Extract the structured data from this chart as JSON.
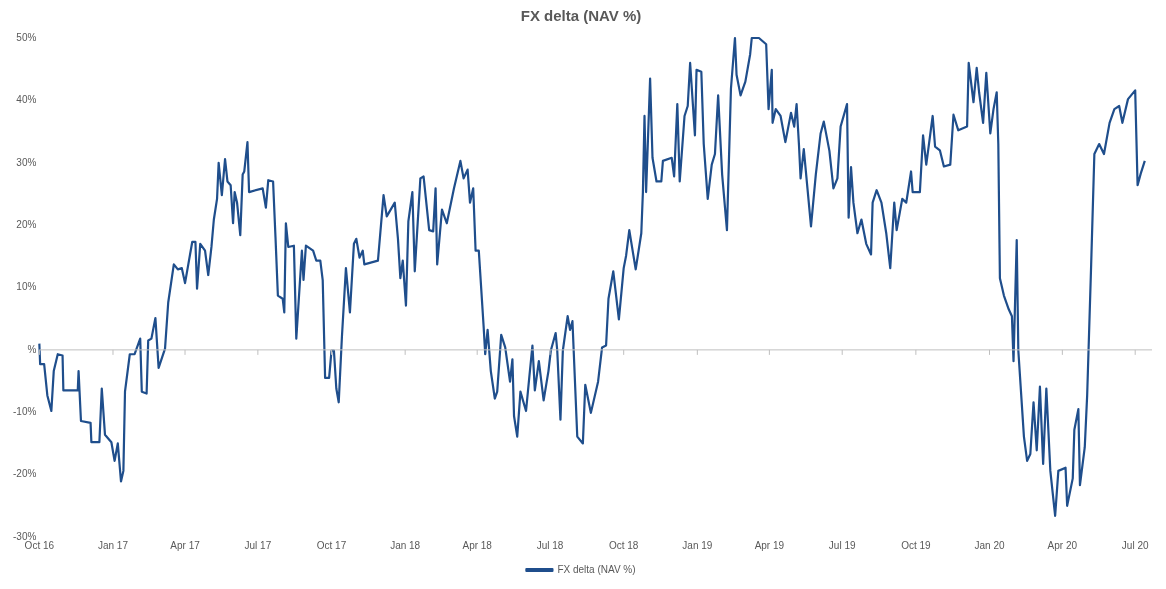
{
  "chart_data": {
    "type": "line",
    "title": "FX delta (NAV %)",
    "x": [
      "2016-10-01",
      "2016-10-02",
      "2016-10-07",
      "2016-10-11",
      "2016-10-16",
      "2016-10-19",
      "2016-10-24",
      "2016-10-30",
      "2016-10-31",
      "2016-11-18",
      "2016-11-19",
      "2016-11-22",
      "2016-12-04",
      "2016-12-05",
      "2016-12-15",
      "2016-12-18",
      "2016-12-22",
      "2016-12-30",
      "2017-01-03",
      "2017-01-07",
      "2017-01-11",
      "2017-01-14",
      "2017-01-16",
      "2017-01-22",
      "2017-01-28",
      "2017-02-04",
      "2017-02-06",
      "2017-02-12",
      "2017-02-14",
      "2017-02-18",
      "2017-02-23",
      "2017-02-27",
      "2017-03-07",
      "2017-03-11",
      "2017-03-18",
      "2017-03-23",
      "2017-03-28",
      "2017-04-01",
      "2017-04-10",
      "2017-04-14",
      "2017-04-16",
      "2017-04-20",
      "2017-04-26",
      "2017-04-30",
      "2017-05-04",
      "2017-05-07",
      "2017-05-11",
      "2017-05-13",
      "2017-05-17",
      "2017-05-21",
      "2017-05-24",
      "2017-05-28",
      "2017-05-31",
      "2017-06-02",
      "2017-06-05",
      "2017-06-09",
      "2017-06-12",
      "2017-06-14",
      "2017-06-18",
      "2017-06-20",
      "2017-07-07",
      "2017-07-11",
      "2017-07-14",
      "2017-07-20",
      "2017-07-23",
      "2017-07-26",
      "2017-08-01",
      "2017-08-03",
      "2017-08-05",
      "2017-08-08",
      "2017-08-15",
      "2017-08-18",
      "2017-08-25",
      "2017-08-27",
      "2017-08-30",
      "2017-09-08",
      "2017-09-12",
      "2017-09-17",
      "2017-09-20",
      "2017-09-23",
      "2017-09-28",
      "2017-10-01",
      "2017-10-04",
      "2017-10-07",
      "2017-10-10",
      "2017-10-14",
      "2017-10-19",
      "2017-10-24",
      "2017-10-29",
      "2017-11-01",
      "2017-11-05",
      "2017-11-09",
      "2017-11-11",
      "2017-11-28",
      "2017-12-05",
      "2017-12-09",
      "2017-12-19",
      "2017-12-23",
      "2017-12-26",
      "2017-12-29",
      "2018-01-02",
      "2018-01-05",
      "2018-01-10",
      "2018-01-13",
      "2018-01-20",
      "2018-01-24",
      "2018-01-31",
      "2018-02-05",
      "2018-02-08",
      "2018-02-10",
      "2018-02-16",
      "2018-02-22",
      "2018-03-03",
      "2018-03-11",
      "2018-03-15",
      "2018-03-20",
      "2018-03-23",
      "2018-03-27",
      "2018-03-30",
      "2018-04-03",
      "2018-04-09",
      "2018-04-11",
      "2018-04-14",
      "2018-04-18",
      "2018-04-23",
      "2018-04-26",
      "2018-05-01",
      "2018-05-06",
      "2018-05-12",
      "2018-05-15",
      "2018-05-17",
      "2018-05-21",
      "2018-05-25",
      "2018-06-01",
      "2018-06-05",
      "2018-06-09",
      "2018-06-12",
      "2018-06-17",
      "2018-06-23",
      "2018-06-29",
      "2018-07-02",
      "2018-07-08",
      "2018-07-10",
      "2018-07-14",
      "2018-07-17",
      "2018-07-23",
      "2018-07-26",
      "2018-07-29",
      "2018-08-04",
      "2018-08-11",
      "2018-08-14",
      "2018-08-21",
      "2018-08-30",
      "2018-09-04",
      "2018-09-09",
      "2018-09-12",
      "2018-09-18",
      "2018-09-25",
      "2018-10-01",
      "2018-10-04",
      "2018-10-08",
      "2018-10-16",
      "2018-10-23",
      "2018-10-25",
      "2018-10-27",
      "2018-10-29",
      "2018-11-03",
      "2018-11-06",
      "2018-11-11",
      "2018-11-17",
      "2018-11-19",
      "2018-11-30",
      "2018-12-03",
      "2018-12-07",
      "2018-12-10",
      "2018-12-16",
      "2018-12-20",
      "2018-12-23",
      "2018-12-29",
      "2018-12-31",
      "2019-01-06",
      "2019-01-09",
      "2019-01-14",
      "2019-01-19",
      "2019-01-23",
      "2019-01-27",
      "2019-02-01",
      "2019-02-07",
      "2019-02-12",
      "2019-02-17",
      "2019-02-19",
      "2019-02-24",
      "2019-03-02",
      "2019-03-08",
      "2019-03-10",
      "2019-03-19",
      "2019-03-28",
      "2019-03-31",
      "2019-04-04",
      "2019-04-05",
      "2019-04-09",
      "2019-04-15",
      "2019-04-21",
      "2019-04-28",
      "2019-05-02",
      "2019-05-05",
      "2019-05-08",
      "2019-05-10",
      "2019-05-14",
      "2019-05-23",
      "2019-05-29",
      "2019-06-04",
      "2019-06-08",
      "2019-06-15",
      "2019-06-20",
      "2019-06-25",
      "2019-06-29",
      "2019-07-07",
      "2019-07-09",
      "2019-07-12",
      "2019-07-15",
      "2019-07-20",
      "2019-07-25",
      "2019-07-31",
      "2019-08-06",
      "2019-08-08",
      "2019-08-13",
      "2019-08-19",
      "2019-08-25",
      "2019-08-30",
      "2019-09-04",
      "2019-09-07",
      "2019-09-14",
      "2019-09-19",
      "2019-09-25",
      "2019-09-27",
      "2019-10-06",
      "2019-10-10",
      "2019-10-14",
      "2019-10-22",
      "2019-10-25",
      "2019-10-31",
      "2019-11-05",
      "2019-11-13",
      "2019-11-17",
      "2019-11-23",
      "2019-12-04",
      "2019-12-06",
      "2019-12-12",
      "2019-12-16",
      "2019-12-19",
      "2019-12-24",
      "2019-12-28",
      "2020-01-02",
      "2020-01-06",
      "2020-01-10",
      "2020-01-12",
      "2020-01-14",
      "2020-01-19",
      "2020-01-25",
      "2020-01-29",
      "2020-01-31",
      "2020-02-04",
      "2020-02-06",
      "2020-02-13",
      "2020-02-17",
      "2020-02-21",
      "2020-02-25",
      "2020-02-29",
      "2020-03-04",
      "2020-03-08",
      "2020-03-12",
      "2020-03-17",
      "2020-03-23",
      "2020-03-27",
      "2020-04-05",
      "2020-04-07",
      "2020-04-14",
      "2020-04-16",
      "2020-04-21",
      "2020-04-23",
      "2020-04-29",
      "2020-05-02",
      "2020-05-07",
      "2020-05-11",
      "2020-05-17",
      "2020-05-23",
      "2020-05-30",
      "2020-06-05",
      "2020-06-11",
      "2020-06-15",
      "2020-06-22",
      "2020-07-01",
      "2020-07-04",
      "2020-07-08",
      "2020-07-13"
    ],
    "series": [
      {
        "name": "FX delta (NAV %)",
        "color": "#1f4e8c",
        "values": [
          1,
          -2.3,
          -2.3,
          -7.3,
          -9.8,
          -3.4,
          -0.7,
          -0.9,
          -6.5,
          -6.5,
          -3.4,
          -11.4,
          -11.7,
          -14.8,
          -14.8,
          -6.2,
          -13.6,
          -14.8,
          -17.8,
          -15,
          -21.1,
          -19.4,
          -6.7,
          -0.7,
          -0.7,
          1.8,
          -6.7,
          -7,
          1.5,
          1.8,
          5.1,
          -2.9,
          0.2,
          7.6,
          13.7,
          12.9,
          13.1,
          10.7,
          17.3,
          17.3,
          9.8,
          17,
          15.9,
          12,
          16.5,
          20.9,
          24.2,
          30,
          24.8,
          30.6,
          27,
          26.4,
          20.3,
          25.3,
          23.6,
          18.4,
          28.1,
          28.6,
          33.3,
          25.3,
          25.9,
          22.8,
          27.2,
          27,
          18.1,
          8.7,
          8.2,
          6,
          20.3,
          16.5,
          16.7,
          1.8,
          15.9,
          11.2,
          16.7,
          15.9,
          14.3,
          14.3,
          11.2,
          -4.5,
          -4.5,
          -0.1,
          -0.1,
          -6.2,
          -8.4,
          2.1,
          13.1,
          6,
          17,
          17.8,
          14.8,
          15.9,
          13.7,
          14.3,
          24.8,
          21.4,
          23.6,
          17.8,
          11.5,
          14.3,
          7.1,
          20.6,
          25.3,
          12.6,
          27.5,
          27.8,
          19.2,
          19,
          25.9,
          13.7,
          22.5,
          20.3,
          25.9,
          30.3,
          27.5,
          28.9,
          23.6,
          25.9,
          15.9,
          15.9,
          3.8,
          -0.7,
          3.2,
          -3.4,
          -7.8,
          -6.7,
          2.4,
          0.4,
          -5.1,
          -1.5,
          -10.6,
          -13.9,
          -6.7,
          -9.8,
          -4.5,
          0.7,
          -6.5,
          -1.8,
          -8.1,
          -3.4,
          -0.1,
          2.7,
          -0.1,
          -11.2,
          -0.1,
          5.4,
          3.2,
          4.6,
          -13.9,
          -15,
          -5.6,
          -10.1,
          -5.1,
          0.4,
          0.7,
          8.2,
          12.6,
          4.9,
          13.1,
          15.1,
          19.2,
          12.9,
          18.7,
          25.3,
          37.5,
          25.3,
          43.5,
          30.8,
          27,
          27,
          30.3,
          30.8,
          27.8,
          39.4,
          27,
          37.5,
          39.1,
          46,
          34.4,
          44.9,
          44.6,
          33,
          24.2,
          29.7,
          31.4,
          40.8,
          28.1,
          19.2,
          41.9,
          50,
          44.1,
          40.8,
          43,
          47.4,
          50,
          50,
          49,
          38.6,
          44.9,
          36.4,
          38.6,
          37.5,
          33.3,
          38,
          35.8,
          39.4,
          32.8,
          27.5,
          32.2,
          19.8,
          28.1,
          34.7,
          36.6,
          31.9,
          25.9,
          27.5,
          35.8,
          39.4,
          21.2,
          29.3,
          23.6,
          18.7,
          20.9,
          17,
          15.3,
          23.6,
          25.6,
          23.6,
          18.7,
          13.1,
          23.6,
          19.2,
          24.2,
          23.6,
          28.6,
          25.3,
          25.3,
          34.4,
          29.7,
          37.5,
          32.6,
          32,
          29.4,
          29.7,
          37.7,
          35.2,
          35.8,
          46,
          39.7,
          45.2,
          41.3,
          36.4,
          44.4,
          34.7,
          38.6,
          41.3,
          33,
          11.5,
          8.7,
          6.5,
          5.4,
          -1.8,
          17.6,
          -0.1,
          -13.9,
          -17.8,
          -16.7,
          -8.4,
          -16.1,
          -5.9,
          -18.3,
          -6.2,
          -19.4,
          -26.6,
          -19.4,
          -18.9,
          -25,
          -20.6,
          -12.8,
          -9.5,
          -21.7,
          -15.6,
          -7.3,
          13.7,
          31.4,
          33,
          31.4,
          36.4,
          38.6,
          39.1,
          36.4,
          40.2,
          41.6,
          26.4,
          28.3,
          30.3
        ]
      }
    ],
    "xlim": [
      "2016-10-01",
      "2020-07-22"
    ],
    "xticks": [
      {
        "value": "2016-10-01",
        "label": "Oct 16"
      },
      {
        "value": "2017-01-01",
        "label": "Jan 17"
      },
      {
        "value": "2017-04-01",
        "label": "Apr 17"
      },
      {
        "value": "2017-07-01",
        "label": "Jul 17"
      },
      {
        "value": "2017-10-01",
        "label": "Oct 17"
      },
      {
        "value": "2018-01-01",
        "label": "Jan 18"
      },
      {
        "value": "2018-04-01",
        "label": "Apr 18"
      },
      {
        "value": "2018-07-01",
        "label": "Jul 18"
      },
      {
        "value": "2018-10-01",
        "label": "Oct 18"
      },
      {
        "value": "2019-01-01",
        "label": "Jan 19"
      },
      {
        "value": "2019-04-01",
        "label": "Apr 19"
      },
      {
        "value": "2019-07-01",
        "label": "Jul 19"
      },
      {
        "value": "2019-10-01",
        "label": "Oct 19"
      },
      {
        "value": "2020-01-01",
        "label": "Jan 20"
      },
      {
        "value": "2020-04-01",
        "label": "Apr 20"
      },
      {
        "value": "2020-07-01",
        "label": "Jul 20"
      }
    ],
    "ylim": [
      -30,
      50
    ],
    "yticks": [
      {
        "value": -30,
        "label": "-30%"
      },
      {
        "value": -20,
        "label": "-20%"
      },
      {
        "value": -10,
        "label": "-10%"
      },
      {
        "value": 0,
        "label": "%"
      },
      {
        "value": 10,
        "label": "10%"
      },
      {
        "value": 20,
        "label": "20%"
      },
      {
        "value": 30,
        "label": "30%"
      },
      {
        "value": 40,
        "label": "40%"
      },
      {
        "value": 50,
        "label": "50%"
      }
    ],
    "ref_lines": [
      {
        "axis": "y",
        "value": 0,
        "color": "#bfbfbf"
      }
    ],
    "grid": false,
    "legend": "bottom",
    "marker": "none",
    "line_style": "solid"
  }
}
